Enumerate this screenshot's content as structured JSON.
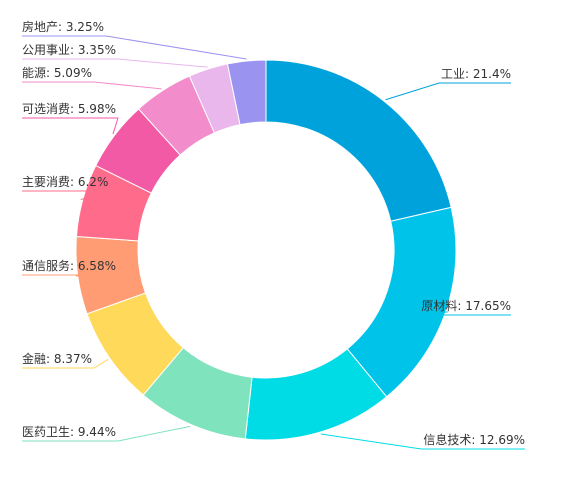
{
  "chart_data": {
    "type": "pie",
    "variant": "donut",
    "title": "",
    "slices": [
      {
        "label": "工业",
        "value": 21.4,
        "display": "工业: 21.4%",
        "color": "#00A2DC"
      },
      {
        "label": "原材料",
        "value": 17.65,
        "display": "原材料: 17.65%",
        "color": "#00C3EA"
      },
      {
        "label": "信息技术",
        "value": 12.69,
        "display": "信息技术: 12.69%",
        "color": "#00DCE6"
      },
      {
        "label": "医药卫生",
        "value": 9.44,
        "display": "医药卫生: 9.44%",
        "color": "#7FE3BE"
      },
      {
        "label": "金融",
        "value": 8.37,
        "display": "金融: 8.37%",
        "color": "#FFD95A"
      },
      {
        "label": "通信服务",
        "value": 6.58,
        "display": "通信服务: 6.58%",
        "color": "#FF9C74"
      },
      {
        "label": "主要消费",
        "value": 6.2,
        "display": "主要消费: 6.2%",
        "color": "#FF6B8A"
      },
      {
        "label": "可选消费",
        "value": 5.98,
        "display": "可选消费: 5.98%",
        "color": "#F25AA6"
      },
      {
        "label": "能源",
        "value": 5.09,
        "display": "能源: 5.09%",
        "color": "#F28CCB"
      },
      {
        "label": "公用事业",
        "value": 3.35,
        "display": "公用事业: 3.35%",
        "color": "#E9B7EC"
      },
      {
        "label": "房地产",
        "value": 3.25,
        "display": "房地产: 3.25%",
        "color": "#9B93F0"
      }
    ]
  }
}
